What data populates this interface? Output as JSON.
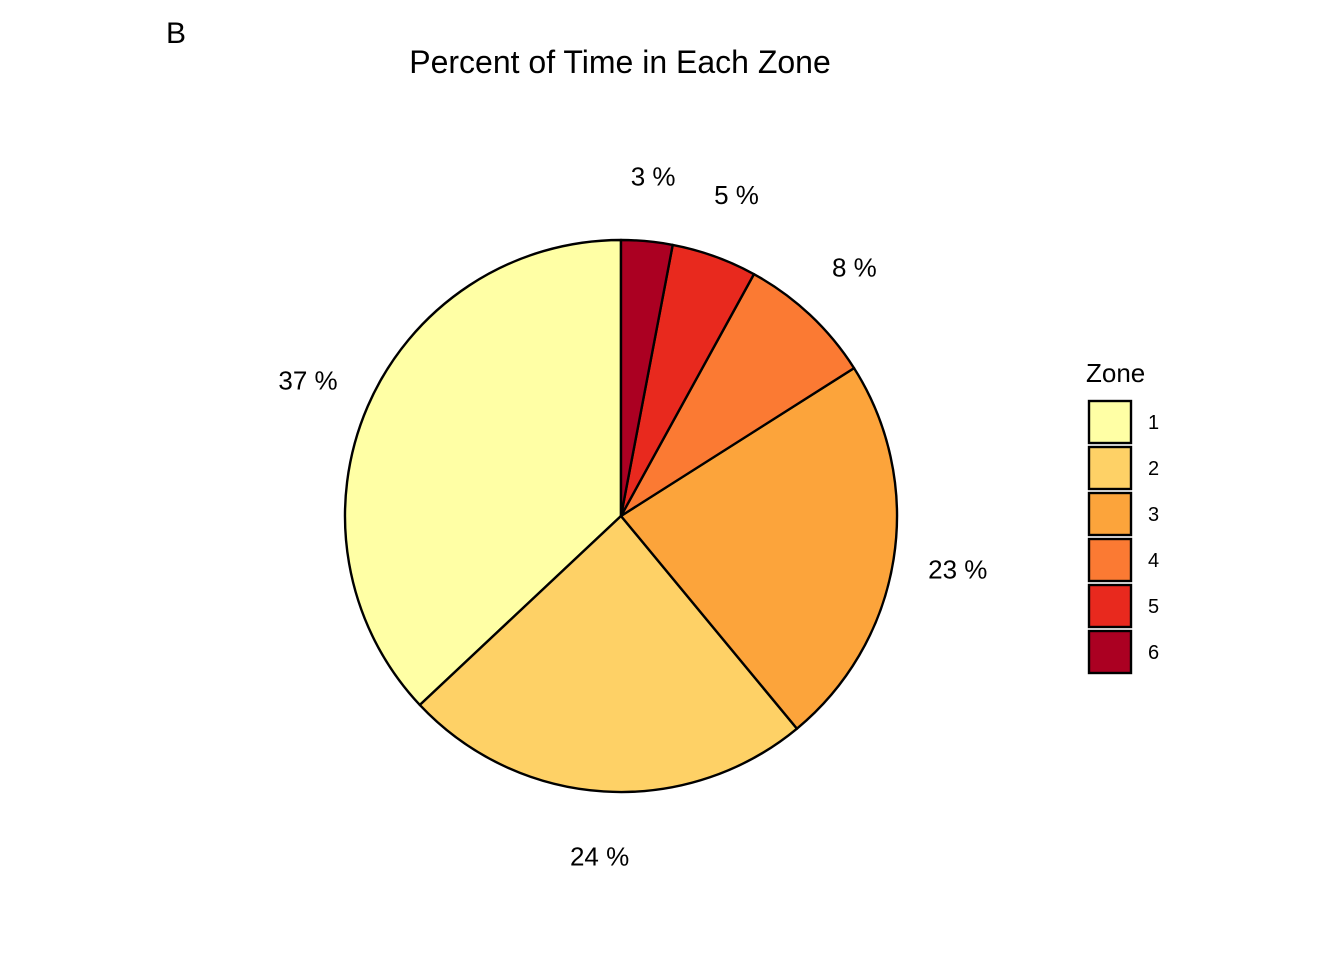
{
  "panel_tag": "B",
  "chart_data": {
    "type": "pie",
    "title": "Percent of Time in Each Zone",
    "categories": [
      "1",
      "2",
      "3",
      "4",
      "5",
      "6"
    ],
    "values": [
      37,
      24,
      23,
      8,
      5,
      3
    ],
    "labels": [
      "37 %",
      "24 %",
      "23 %",
      "8 %",
      "5 %",
      "3 %"
    ],
    "colors": [
      "#FFFFA5",
      "#FED166",
      "#FCA43B",
      "#FB7A33",
      "#E8291E",
      "#AB0022"
    ],
    "legend": {
      "title": "Zone",
      "placement": "right"
    },
    "start": "12 o'clock",
    "direction": "counter-clockwise"
  }
}
